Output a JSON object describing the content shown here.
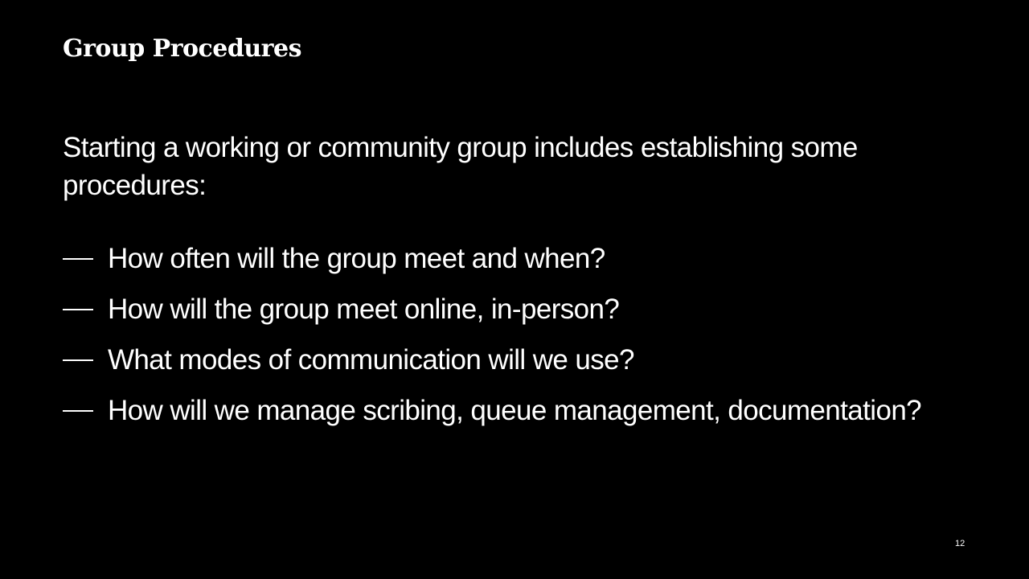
{
  "slide": {
    "title": "Group Procedures",
    "intro": "Starting a working or community group includes establishing some procedures:",
    "bullets": [
      "How often will the group meet and when?",
      "How will the group meet online, in-person?",
      "What modes of communication will we use?",
      "How will we manage scribing, queue management, documentation?"
    ],
    "page_number": "12",
    "bullet_icon": "em-dash",
    "colors": {
      "background": "#000000",
      "text": "#ffffff"
    }
  }
}
